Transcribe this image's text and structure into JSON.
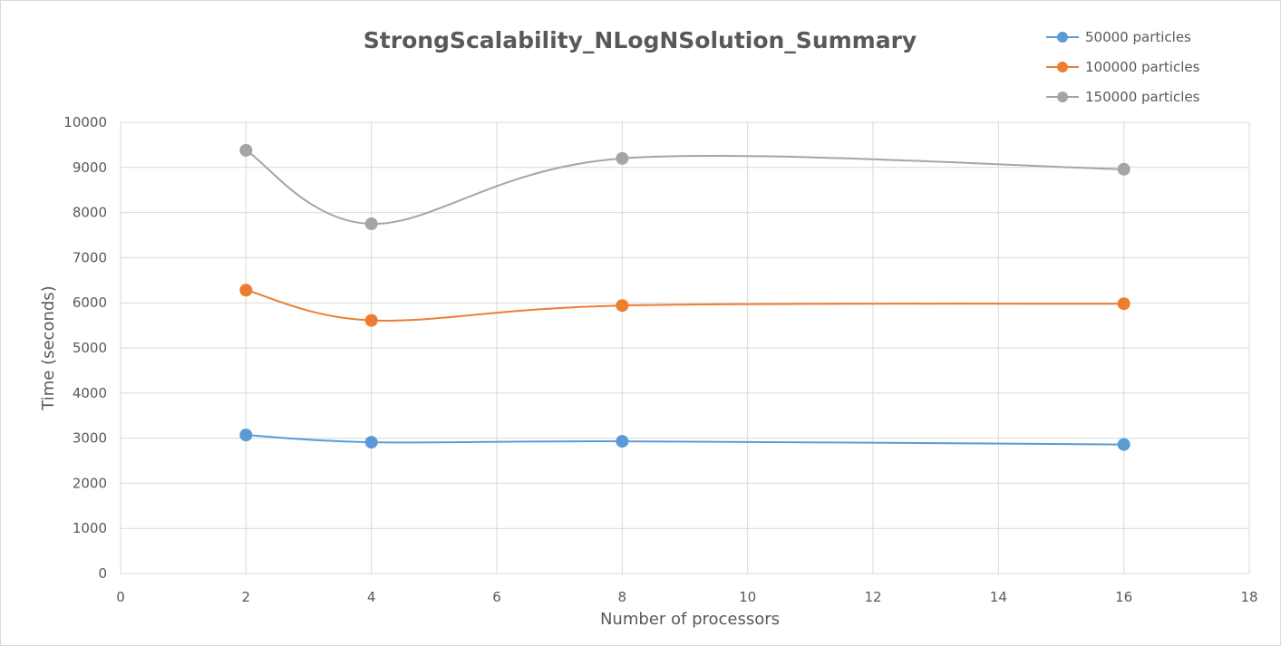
{
  "chart_data": {
    "type": "line",
    "title": "StrongScalability_NLogNSolution_Summary",
    "xlabel": "Number of processors",
    "ylabel": "Time (seconds)",
    "xlim": [
      0,
      18
    ],
    "ylim": [
      0,
      10000
    ],
    "x_ticks": [
      0,
      2,
      4,
      6,
      8,
      10,
      12,
      14,
      16,
      18
    ],
    "y_ticks": [
      0,
      1000,
      2000,
      3000,
      4000,
      5000,
      6000,
      7000,
      8000,
      9000,
      10000
    ],
    "grid": true,
    "smooth": true,
    "legend_position": "top-right",
    "series": [
      {
        "name": "50000 particles",
        "color": "#5b9bd5",
        "x": [
          2,
          4,
          8,
          16
        ],
        "y": [
          3070,
          2910,
          2930,
          2860
        ]
      },
      {
        "name": "100000 particles",
        "color": "#ed7d31",
        "x": [
          2,
          4,
          8,
          16
        ],
        "y": [
          6280,
          5610,
          5940,
          5980
        ]
      },
      {
        "name": "150000 particles",
        "color": "#a5a5a5",
        "x": [
          2,
          4,
          8,
          16
        ],
        "y": [
          9380,
          7750,
          9200,
          8960
        ]
      }
    ]
  }
}
